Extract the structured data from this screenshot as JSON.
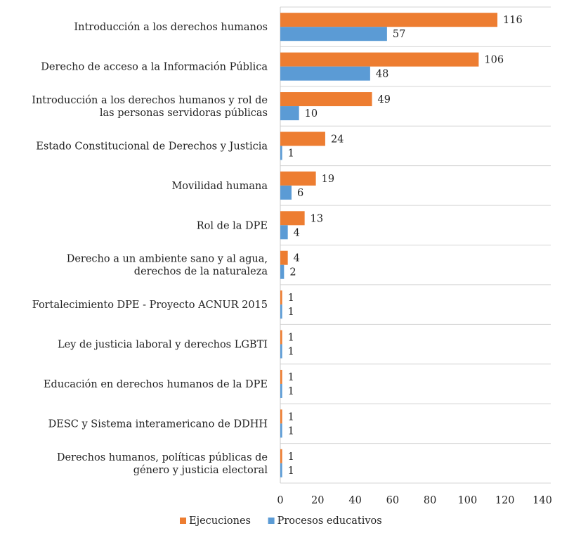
{
  "chart_data": {
    "type": "bar",
    "orientation": "horizontal",
    "categories": [
      "Introducción a los derechos humanos",
      "Derecho de acceso a la Información Pública",
      "Introducción a los derechos humanos y rol de\nlas personas servidoras públicas",
      "Estado Constitucional de Derechos y Justicia",
      "Movilidad humana",
      "Rol de la DPE",
      "Derecho a un ambiente sano y al agua,\nderechos de la naturaleza",
      "Fortalecimiento DPE - Proyecto ACNUR  2015",
      "Ley de justicia laboral y derechos LGBTI",
      "Educación en derechos humanos de la DPE",
      "DESC y Sistema interamericano de DDHH",
      "Derechos humanos, políticas públicas de\ngénero y justicia electoral"
    ],
    "series": [
      {
        "name": "Ejecuciones",
        "color": "#ED7D31",
        "values": [
          116,
          106,
          49,
          24,
          19,
          13,
          4,
          1,
          1,
          1,
          1,
          1
        ]
      },
      {
        "name": "Procesos educativos",
        "color": "#5B9BD5",
        "values": [
          57,
          48,
          10,
          1,
          6,
          4,
          2,
          1,
          1,
          1,
          1,
          1
        ]
      }
    ],
    "xlim": [
      0,
      140
    ],
    "xticks": [
      0,
      20,
      40,
      60,
      80,
      100,
      120,
      140
    ],
    "grid": "horizontal separators",
    "legend_position": "bottom"
  }
}
